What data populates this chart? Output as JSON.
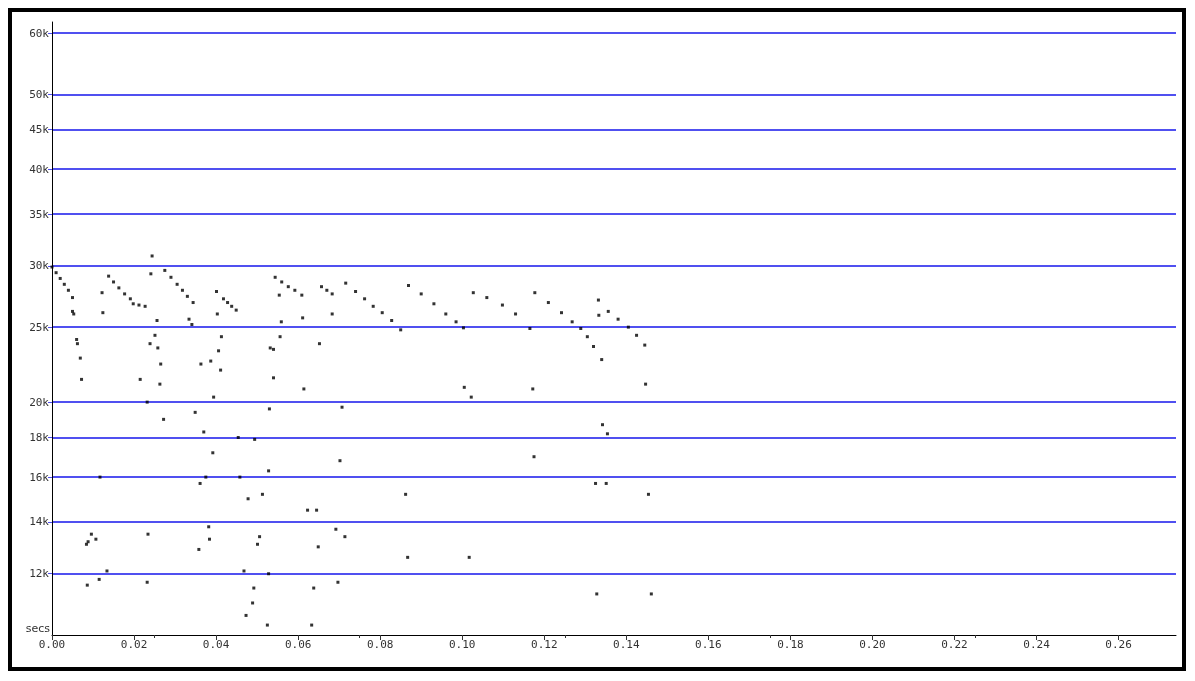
{
  "chart_data": {
    "type": "scatter",
    "xlabel": "secs",
    "log": "y",
    "grid": "y",
    "marker": "square",
    "xlim": [
      0,
      0.274
    ],
    "ylim": [
      10000,
      62000
    ],
    "xticks": [
      {
        "value": 0,
        "label": "0.00"
      },
      {
        "value": 0.02,
        "label": "0.02"
      },
      {
        "value": 0.04,
        "label": "0.04"
      },
      {
        "value": 0.06,
        "label": "0.06"
      },
      {
        "value": 0.08,
        "label": "0.08"
      },
      {
        "value": 0.1,
        "label": "0.10"
      },
      {
        "value": 0.12,
        "label": "0.12"
      },
      {
        "value": 0.14,
        "label": "0.14"
      },
      {
        "value": 0.16,
        "label": "0.16"
      },
      {
        "value": 0.18,
        "label": "0.18"
      },
      {
        "value": 0.2,
        "label": "0.20"
      },
      {
        "value": 0.22,
        "label": "0.22"
      },
      {
        "value": 0.24,
        "label": "0.24"
      },
      {
        "value": 0.26,
        "label": "0.26"
      }
    ],
    "yticks": [
      {
        "value": 12000,
        "label": "12k"
      },
      {
        "value": 14000,
        "label": "14k"
      },
      {
        "value": 16000,
        "label": "16k"
      },
      {
        "value": 18000,
        "label": "18k"
      },
      {
        "value": 20000,
        "label": "20k"
      },
      {
        "value": 25000,
        "label": "25k"
      },
      {
        "value": 30000,
        "label": "30k"
      },
      {
        "value": 35000,
        "label": "35k"
      },
      {
        "value": 40000,
        "label": "40k"
      },
      {
        "value": 45000,
        "label": "45k"
      },
      {
        "value": 50000,
        "label": "50k"
      },
      {
        "value": 60000,
        "label": "60k"
      }
    ],
    "series": [
      {
        "color": "#000000",
        "x": [
          0,
          0.001,
          0.002,
          0.003,
          0.004,
          0.005,
          0.0138,
          0.015,
          0.0163,
          0.0177,
          0.0191,
          0.0198,
          0.0212,
          0.0227,
          0.0275,
          0.029,
          0.0305,
          0.0318,
          0.033,
          0.0418,
          0.0428,
          0.0438,
          0.0449,
          0.0544,
          0.056,
          0.0576,
          0.0592,
          0.0609,
          0.0657,
          0.067,
          0.0683,
          0.0716,
          0.074,
          0.0762,
          0.0783,
          0.0805,
          0.0828,
          0.085,
          0.0869,
          0.09,
          0.0931,
          0.096,
          0.0985,
          0.1003,
          0.1027,
          0.106,
          0.1098,
          0.113,
          0.1165,
          0.1177,
          0.121,
          0.1242,
          0.1268,
          0.1289,
          0.1305,
          0.132,
          0.1356,
          0.138,
          0.1405,
          0.1425,
          0.1445,
          0.1332,
          0.1333,
          0.134,
          0.1005,
          0.1022,
          0.1172,
          0.1342,
          0.1354,
          0.1175,
          0.1447,
          0.1325,
          0.1351,
          0.1454,
          0.1017,
          0.1328,
          0.1461,
          0.0554,
          0.0559,
          0.0611,
          0.0683,
          0.0556,
          0.0532,
          0.054,
          0.0652,
          0.054,
          0.0614,
          0.053,
          0.0707,
          0.0454,
          0.0494,
          0.0528,
          0.0702,
          0.0458,
          0.0478,
          0.0513,
          0.0862,
          0.0623,
          0.0645,
          0.0692,
          0.0714,
          0.0506,
          0.0501,
          0.0649,
          0.0867,
          0.0468,
          0.0528,
          0.0697,
          0.0492,
          0.0638,
          0.0489,
          0.0473,
          0.0525,
          0.0633,
          0.0256,
          0.0251,
          0.0239,
          0.0258,
          0.0265,
          0.0215,
          0.0263,
          0.0232,
          0.0272,
          0.0349,
          0.0363,
          0.0387,
          0.0406,
          0.0413,
          0.0411,
          0.0394,
          0.037,
          0.0392,
          0.0361,
          0.0375,
          0.0117,
          0.0382,
          0.0384,
          0.0358,
          0.0234,
          0.0232,
          0.0086,
          0.0115,
          0.0134,
          0.0084,
          0.0088,
          0.0096,
          0.0107,
          0.005,
          0.0053,
          0.006,
          0.0062,
          0.0069,
          0.0072,
          0.0122,
          0.0124,
          0.0241,
          0.0244,
          0.0344,
          0.0334,
          0.0341,
          0.0401,
          0.0403
        ],
        "values": [
          29900,
          29400,
          28900,
          28400,
          27900,
          27300,
          29100,
          28600,
          28100,
          27600,
          27200,
          26800,
          26700,
          26600,
          29600,
          29000,
          28400,
          27900,
          27400,
          27200,
          26900,
          26600,
          26300,
          29000,
          28600,
          28200,
          27900,
          27500,
          28200,
          27900,
          27600,
          28500,
          27800,
          27200,
          26600,
          26100,
          25500,
          24800,
          28300,
          27600,
          26800,
          26000,
          25400,
          24950,
          27700,
          27300,
          26700,
          26000,
          24900,
          27700,
          26900,
          26100,
          25400,
          24900,
          24300,
          23600,
          26200,
          25600,
          25000,
          24400,
          23700,
          27100,
          25900,
          22700,
          20900,
          20300,
          20800,
          18700,
          18200,
          17000,
          21100,
          15700,
          15700,
          15200,
          12600,
          11300,
          11300,
          27500,
          25400,
          25700,
          26000,
          24300,
          23500,
          23400,
          23800,
          21500,
          20800,
          19600,
          19700,
          18000,
          17900,
          16300,
          16800,
          16000,
          15000,
          15200,
          15200,
          14500,
          14500,
          13700,
          13400,
          13400,
          13100,
          13000,
          12600,
          12100,
          12000,
          11700,
          11500,
          11500,
          11000,
          10600,
          10300,
          10300,
          25500,
          24400,
          23800,
          23500,
          22400,
          21400,
          21100,
          20000,
          19000,
          19400,
          22400,
          22600,
          23300,
          24300,
          22000,
          20300,
          18300,
          17200,
          15700,
          16000,
          16000,
          13800,
          13300,
          12900,
          13500,
          11700,
          11600,
          11800,
          12100,
          13100,
          13200,
          13500,
          13300,
          26200,
          26000,
          24100,
          23800,
          22800,
          21400,
          27700,
          26100,
          29300,
          30900,
          26900,
          25600,
          25200,
          27800,
          26000
        ]
      }
    ]
  }
}
